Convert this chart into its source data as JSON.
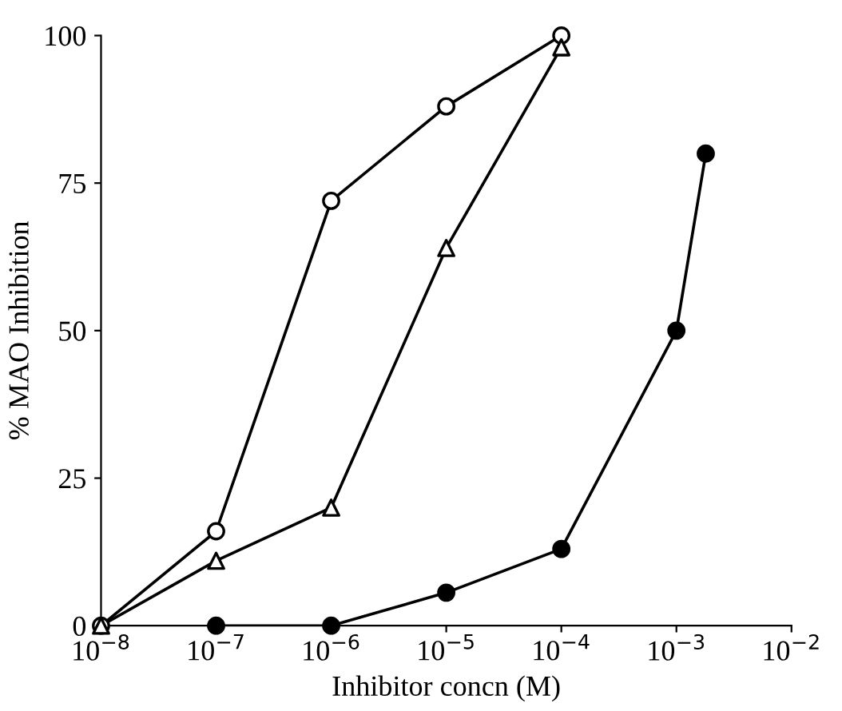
{
  "chart_data": {
    "type": "line",
    "xlabel": "Inhibitor concn (M)",
    "ylabel": "% MAO Inhibition",
    "log": "x",
    "xlim": [
      1e-08,
      0.01
    ],
    "ylim": [
      0,
      100
    ],
    "xticks": [
      {
        "value": 1e-08,
        "label": "10$^{−8}$"
      },
      {
        "value": 1e-07,
        "label": "10$^{−7}$"
      },
      {
        "value": 1e-06,
        "label": "10$^{−6}$"
      },
      {
        "value": 1e-05,
        "label": "10$^{−5}$"
      },
      {
        "value": 0.0001,
        "label": "10$^{−4}$"
      },
      {
        "value": 0.001,
        "label": "10$^{−3}$"
      },
      {
        "value": 0.01,
        "label": "10$^{−2}$"
      }
    ],
    "yticks": [
      0,
      25,
      50,
      75,
      100
    ],
    "grid": false,
    "legend": false,
    "line_style": "solid",
    "series": [
      {
        "color": "#000000",
        "marker": "circle",
        "colors": [
          "#ffffff",
          "#ffffff",
          "#ffffff",
          "#ffffff",
          "#ffffff"
        ],
        "x": [
          1e-08,
          1e-07,
          1e-06,
          1e-05,
          0.0001
        ],
        "values": [
          0,
          16,
          72,
          88,
          100
        ]
      },
      {
        "color": "#000000",
        "marker": "triangle",
        "colors": [
          "#ffffff",
          "#ffffff",
          "#ffffff",
          "#ffffff",
          "#ffffff"
        ],
        "x": [
          1e-08,
          1e-07,
          1e-06,
          1e-05,
          0.0001
        ],
        "values": [
          0,
          11,
          20,
          64,
          98
        ]
      },
      {
        "color": "#000000",
        "marker": "circle",
        "colors": [
          "#000000",
          "#000000",
          "#000000",
          "#000000",
          "#000000",
          "#000000"
        ],
        "x": [
          1e-07,
          1e-06,
          1e-05,
          0.0001,
          0.001,
          0.0018
        ],
        "values": [
          0,
          0,
          5.6,
          13,
          50,
          80
        ]
      }
    ]
  }
}
